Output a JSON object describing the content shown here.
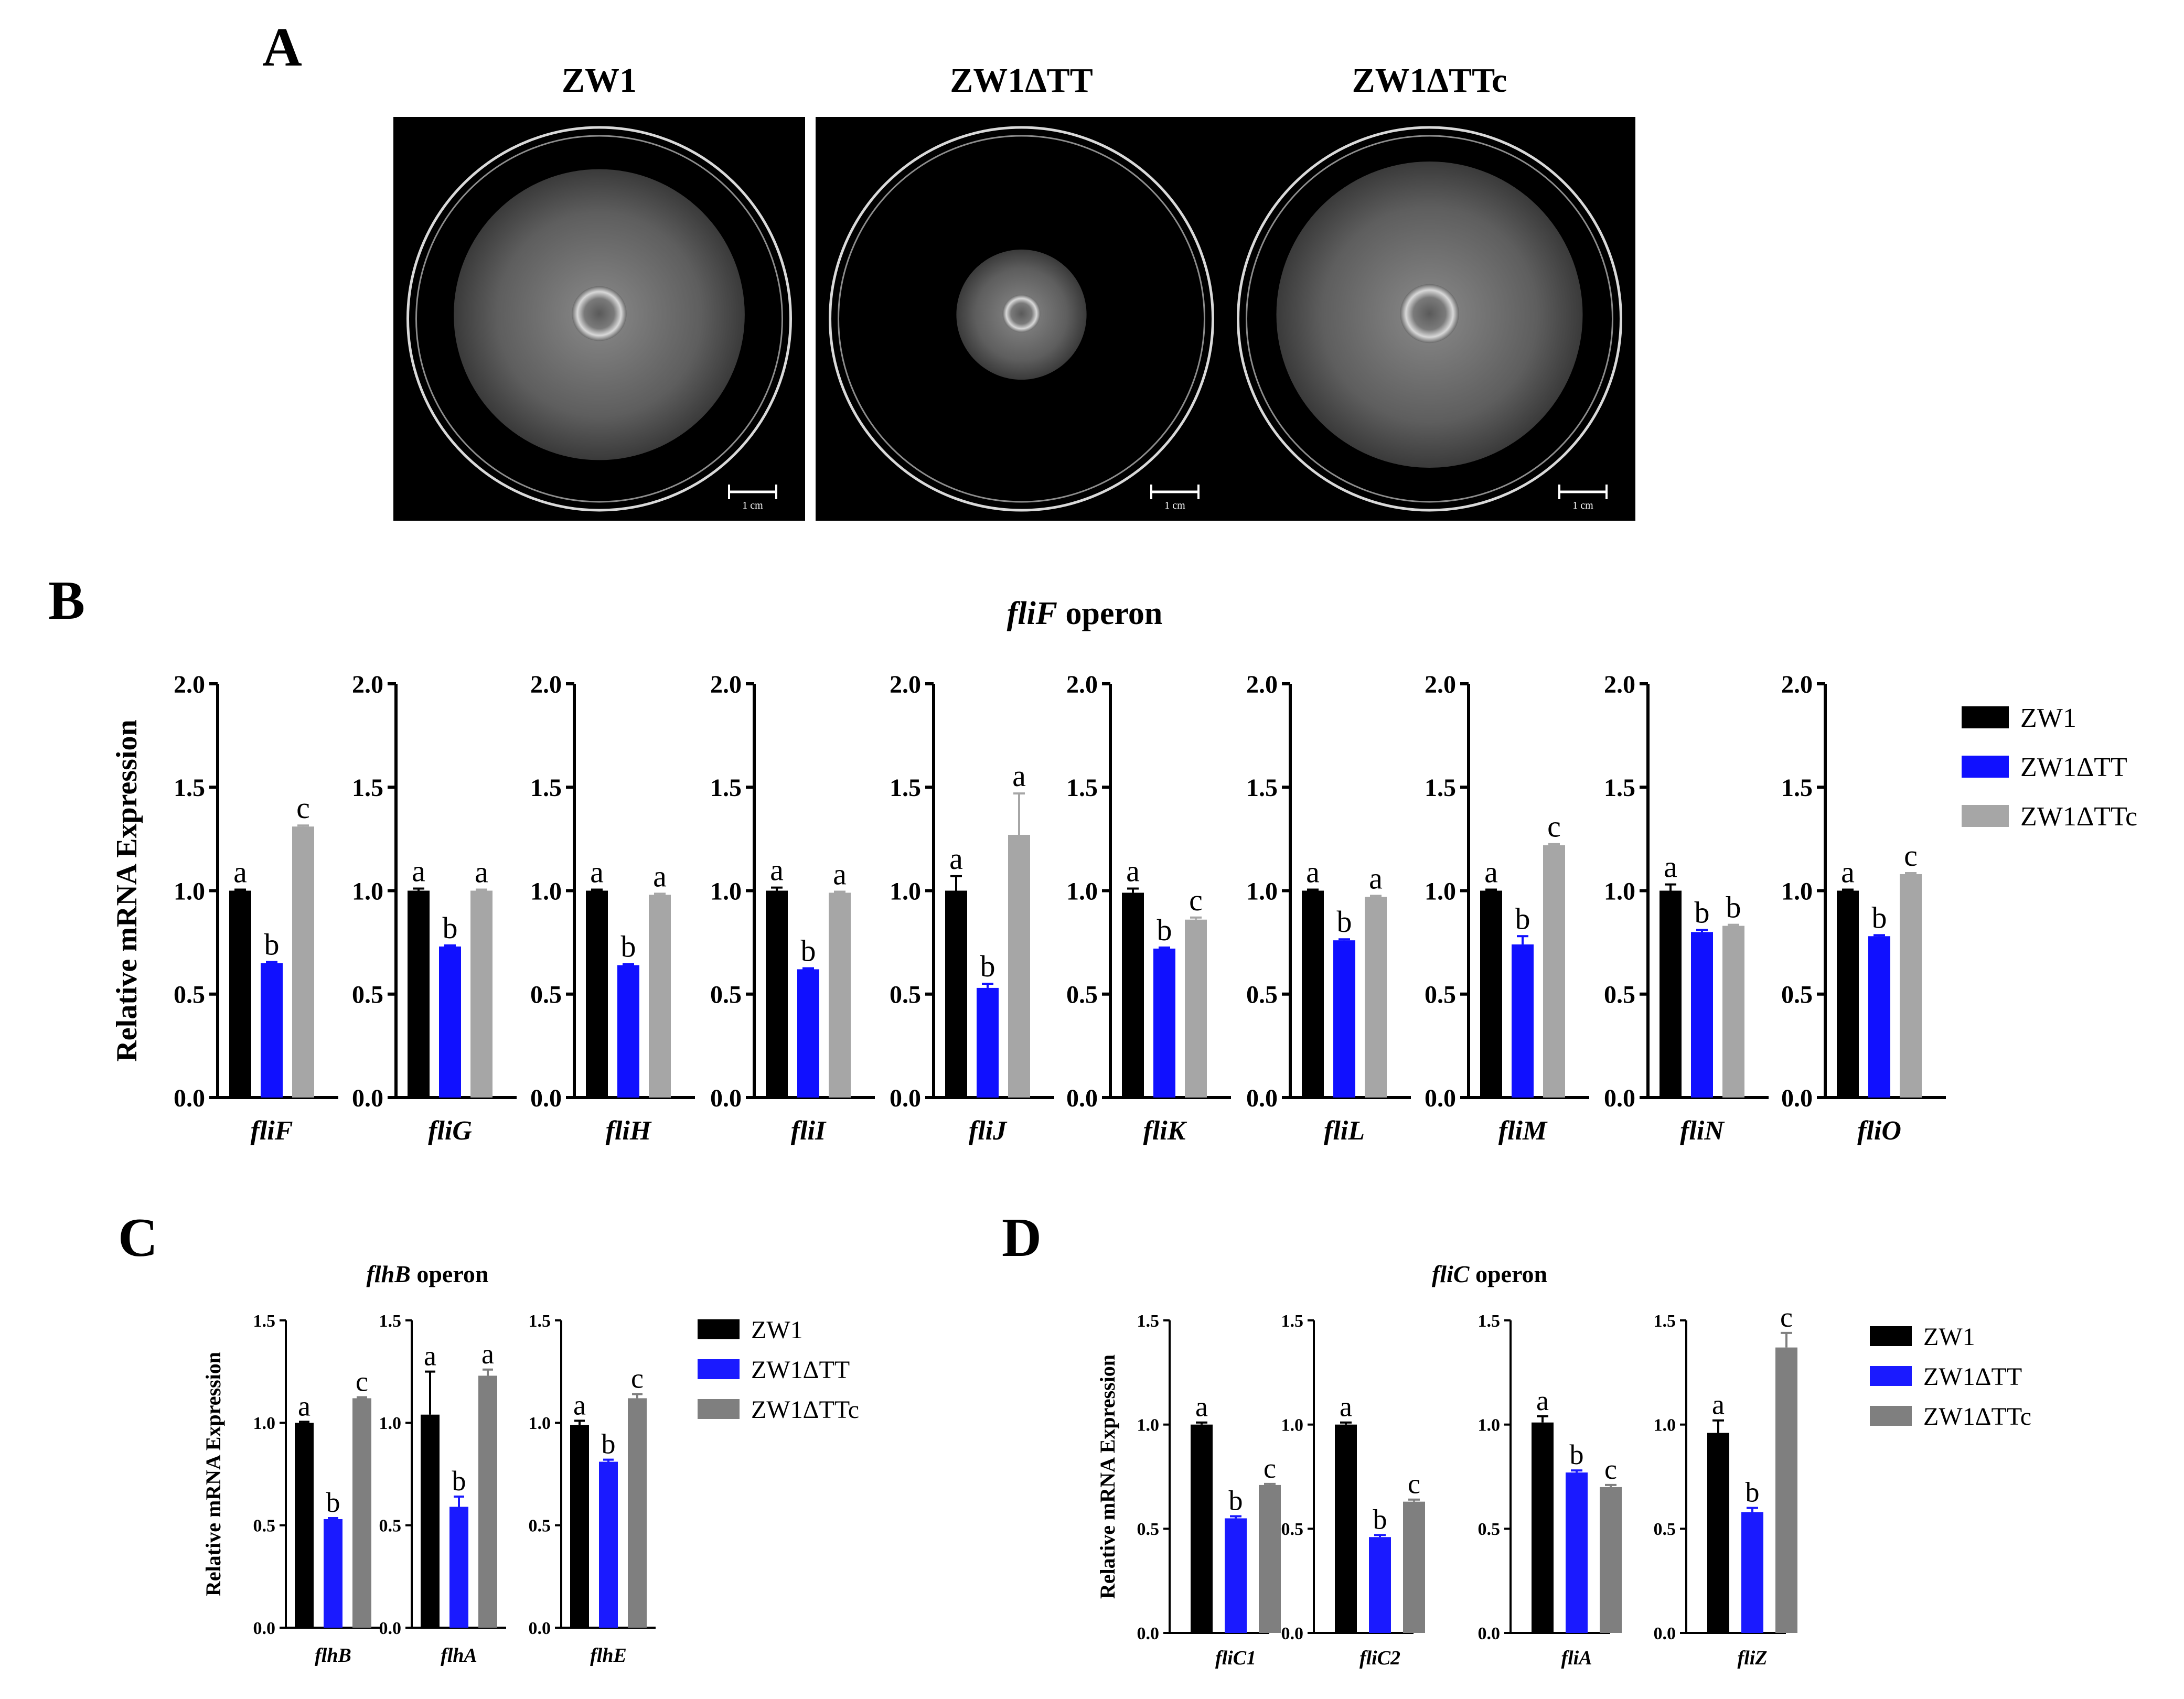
{
  "panels": {
    "A": {
      "letter": "A",
      "plates": [
        {
          "label": "ZW1",
          "scale": "1 cm",
          "halo": 0.38,
          "core": 0.13
        },
        {
          "label": "ZW1ΔTT",
          "scale": "1 cm",
          "halo": 0.17,
          "core": 0.09
        },
        {
          "label": "ZW1ΔTTc",
          "scale": "1 cm",
          "halo": 0.4,
          "core": 0.14
        }
      ]
    },
    "B": {
      "letter": "B",
      "title_italic": "fliF",
      "title_rest": " operon"
    },
    "C": {
      "letter": "C",
      "title_italic": "flhB",
      "title_rest": " operon"
    },
    "D": {
      "letter": "D",
      "title_italic": "fliC",
      "title_rest": " operon"
    }
  },
  "colors": {
    "ZW1": "#000000",
    "ZW1ΔTT_B": "#1010ff",
    "ZW1ΔTTc_B": "#a6a6a6",
    "ZW1ΔTT_CD": "#1a1aff",
    "ZW1ΔTTc_CD": "#7f7f7f"
  },
  "chart_data": [
    {
      "panel": "B",
      "type": "bar",
      "ylabel": "Relative mRNA Expression",
      "ylim": [
        0,
        2.0
      ],
      "yticks": [
        "0.0",
        "0.5",
        "1.0",
        "1.5",
        "2.0"
      ],
      "series_names": [
        "ZW1",
        "ZW1ΔTT",
        "ZW1ΔTTc"
      ],
      "groups": [
        {
          "gene": "fliF",
          "values": [
            1.0,
            0.65,
            1.31
          ],
          "errors": [
            0.005,
            0.005,
            0.005
          ],
          "letters": [
            "a",
            "b",
            "c"
          ]
        },
        {
          "gene": "fliG",
          "values": [
            1.0,
            0.73,
            1.0
          ],
          "errors": [
            0.01,
            0.005,
            0.005
          ],
          "letters": [
            "a",
            "b",
            "a"
          ]
        },
        {
          "gene": "fliH",
          "values": [
            1.0,
            0.64,
            0.98
          ],
          "errors": [
            0.005,
            0.005,
            0.005
          ],
          "letters": [
            "a",
            "b",
            "a"
          ]
        },
        {
          "gene": "fliI",
          "values": [
            1.0,
            0.62,
            0.99
          ],
          "errors": [
            0.015,
            0.005,
            0.005
          ],
          "letters": [
            "a",
            "b",
            "a"
          ]
        },
        {
          "gene": "fliJ",
          "values": [
            1.0,
            0.53,
            1.27
          ],
          "errors": [
            0.07,
            0.02,
            0.2
          ],
          "letters": [
            "a",
            "b",
            "a"
          ]
        },
        {
          "gene": "fliK",
          "values": [
            0.99,
            0.72,
            0.86
          ],
          "errors": [
            0.02,
            0.005,
            0.01
          ],
          "letters": [
            "a",
            "b",
            "c"
          ]
        },
        {
          "gene": "fliL",
          "values": [
            1.0,
            0.76,
            0.97
          ],
          "errors": [
            0.005,
            0.005,
            0.005
          ],
          "letters": [
            "a",
            "b",
            "a"
          ]
        },
        {
          "gene": "fliM",
          "values": [
            1.0,
            0.74,
            1.22
          ],
          "errors": [
            0.005,
            0.04,
            0.005
          ],
          "letters": [
            "a",
            "b",
            "c"
          ]
        },
        {
          "gene": "fliN",
          "values": [
            1.0,
            0.8,
            0.83
          ],
          "errors": [
            0.03,
            0.01,
            0.005
          ],
          "letters": [
            "a",
            "b",
            "b"
          ]
        },
        {
          "gene": "fliO",
          "values": [
            1.0,
            0.78,
            1.08
          ],
          "errors": [
            0.005,
            0.005,
            0.005
          ],
          "letters": [
            "a",
            "b",
            "c"
          ]
        }
      ]
    },
    {
      "panel": "C",
      "type": "bar",
      "ylabel": "Relative mRNA Expression",
      "ylim": [
        0,
        1.5
      ],
      "yticks": [
        "0.0",
        "0.5",
        "1.0",
        "1.5"
      ],
      "series_names": [
        "ZW1",
        "ZW1ΔTT",
        "ZW1ΔTTc"
      ],
      "groups": [
        {
          "gene": "flhB",
          "values": [
            1.0,
            0.53,
            1.12
          ],
          "errors": [
            0.005,
            0.005,
            0.005
          ],
          "letters": [
            "a",
            "b",
            "c"
          ]
        },
        {
          "gene": "flhA",
          "values": [
            1.04,
            0.59,
            1.23
          ],
          "errors": [
            0.21,
            0.05,
            0.03
          ],
          "letters": [
            "a",
            "b",
            "a"
          ]
        },
        {
          "gene": "flhE",
          "values": [
            0.99,
            0.81,
            1.12
          ],
          "errors": [
            0.02,
            0.01,
            0.02
          ],
          "letters": [
            "a",
            "b",
            "c"
          ]
        }
      ]
    },
    {
      "panel": "D",
      "type": "bar",
      "ylabel": "Relative mRNA Expression",
      "ylim": [
        0,
        1.5
      ],
      "yticks": [
        "0.0",
        "0.5",
        "1.0",
        "1.5"
      ],
      "series_names": [
        "ZW1",
        "ZW1ΔTT",
        "ZW1ΔTTc"
      ],
      "groups": [
        {
          "gene": "fliC1",
          "values": [
            1.0,
            0.55,
            0.71
          ],
          "errors": [
            0.01,
            0.01,
            0.005
          ],
          "letters": [
            "a",
            "b",
            "c"
          ]
        },
        {
          "gene": "fliC2",
          "values": [
            1.0,
            0.46,
            0.63
          ],
          "errors": [
            0.01,
            0.01,
            0.01
          ],
          "letters": [
            "a",
            "b",
            "c"
          ]
        },
        {
          "gene": "fliA",
          "values": [
            1.01,
            0.77,
            0.7
          ],
          "errors": [
            0.03,
            0.01,
            0.01
          ],
          "letters": [
            "a",
            "b",
            "c"
          ]
        },
        {
          "gene": "fliZ",
          "values": [
            0.96,
            0.58,
            1.37
          ],
          "errors": [
            0.06,
            0.02,
            0.07
          ],
          "letters": [
            "a",
            "b",
            "c"
          ]
        }
      ]
    }
  ]
}
